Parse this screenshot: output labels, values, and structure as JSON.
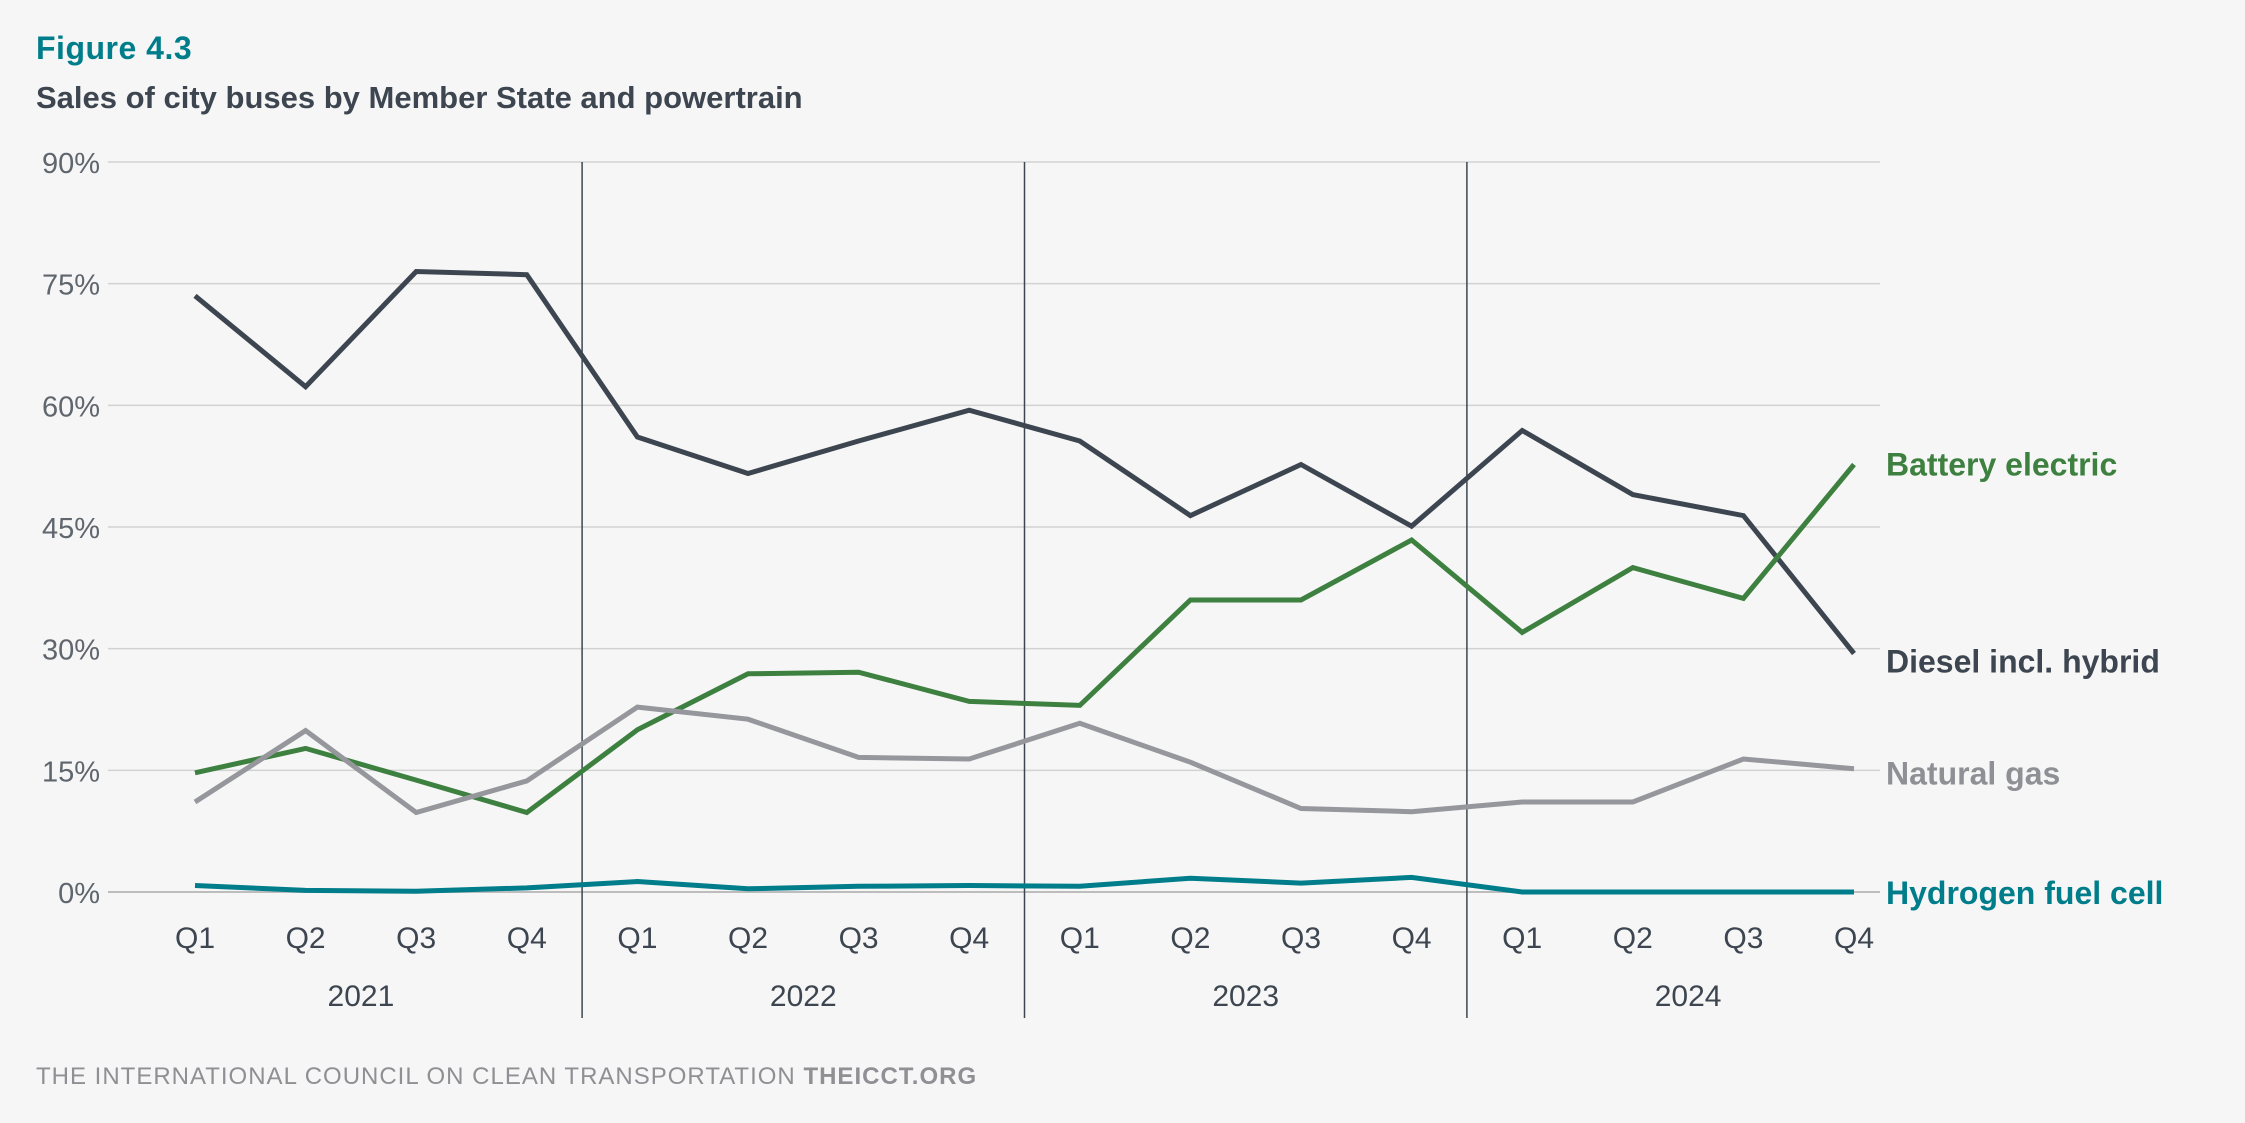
{
  "figure_label": "Figure 4.3",
  "title": "Sales of city buses by Member State and powertrain",
  "footer": {
    "org": "THE INTERNATIONAL COUNCIL ON CLEAN TRANSPORTATION",
    "site": "THEICCT.ORG"
  },
  "chart_data": {
    "type": "line",
    "title": "Sales of city buses by Member State and powertrain",
    "x": [
      "Q1",
      "Q2",
      "Q3",
      "Q4",
      "Q1",
      "Q2",
      "Q3",
      "Q4",
      "Q1",
      "Q2",
      "Q3",
      "Q4",
      "Q1",
      "Q2",
      "Q3",
      "Q4"
    ],
    "year_groups": [
      {
        "label": "2021",
        "quarters": 4
      },
      {
        "label": "2022",
        "quarters": 4
      },
      {
        "label": "2023",
        "quarters": 4
      },
      {
        "label": "2024",
        "quarters": 4
      }
    ],
    "ylim": [
      0,
      90
    ],
    "yticks": [
      0,
      15,
      30,
      45,
      60,
      75,
      90
    ],
    "ytick_labels": [
      "0%",
      "15%",
      "30%",
      "45%",
      "60%",
      "75%",
      "90%"
    ],
    "grid": true,
    "legend": "direct labels at right end of lines",
    "series": [
      {
        "name": "Diesel incl. hybrid",
        "color": "#3d4650",
        "values": [
          73.5,
          62.3,
          76.5,
          76.1,
          56.1,
          51.6,
          55.6,
          59.4,
          55.6,
          46.4,
          52.7,
          45.1,
          56.9,
          49.0,
          46.4,
          29.4
        ]
      },
      {
        "name": "Battery electric",
        "color": "#3d8040",
        "values": [
          14.7,
          17.7,
          13.8,
          9.8,
          20.0,
          26.9,
          27.1,
          23.5,
          23.0,
          36.0,
          36.0,
          43.4,
          32.0,
          40.0,
          36.2,
          52.7
        ]
      },
      {
        "name": "Natural gas",
        "color": "#96979c",
        "values": [
          11.1,
          19.9,
          9.8,
          13.7,
          22.8,
          21.3,
          16.6,
          16.4,
          20.8,
          16.0,
          10.3,
          9.9,
          11.1,
          11.1,
          16.4,
          15.2
        ]
      },
      {
        "name": "Hydrogen fuel cell",
        "color": "#007d8a",
        "values": [
          0.8,
          0.2,
          0.1,
          0.5,
          1.3,
          0.4,
          0.7,
          0.8,
          0.7,
          1.7,
          1.1,
          1.8,
          0.0,
          0.0,
          0.0,
          0.0
        ]
      }
    ]
  }
}
